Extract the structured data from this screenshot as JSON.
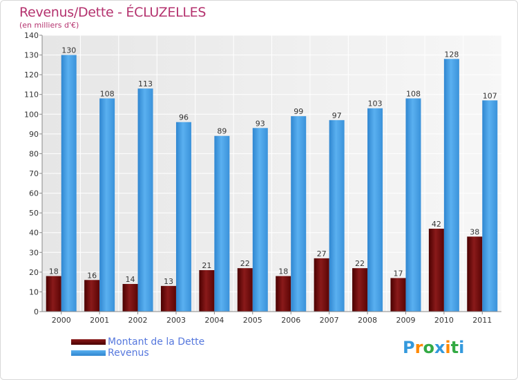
{
  "chart_data": {
    "type": "bar",
    "title": "Revenus/Dette - ÉCLUZELLES",
    "subtitle": "(en milliers d'€)",
    "xlabel": "",
    "ylabel": "",
    "ylim": [
      0,
      140
    ],
    "yticks": [
      0,
      10,
      20,
      30,
      40,
      50,
      60,
      70,
      80,
      90,
      100,
      110,
      120,
      130,
      140
    ],
    "grid": true,
    "legend_position": "bottom-left",
    "categories": [
      "2000",
      "2001",
      "2002",
      "2003",
      "2004",
      "2005",
      "2006",
      "2007",
      "2008",
      "2009",
      "2010",
      "2011"
    ],
    "series": [
      {
        "name": "Montant de la Dette",
        "color": "#6b0a0a",
        "values": [
          18,
          16,
          14,
          13,
          21,
          22,
          18,
          27,
          22,
          17,
          42,
          38
        ]
      },
      {
        "name": "Revenus",
        "color": "#3f9fe6",
        "values": [
          130,
          108,
          113,
          96,
          89,
          93,
          99,
          97,
          103,
          108,
          128,
          107
        ]
      }
    ]
  },
  "branding": {
    "logo_letters": [
      "P",
      "r",
      "o",
      "x",
      "i",
      "t",
      "i"
    ],
    "logo_colors": [
      "#3399dd",
      "#ff8800",
      "#33aa44",
      "#3399dd",
      "#ff8800",
      "#33aa44",
      "#3399dd"
    ]
  }
}
